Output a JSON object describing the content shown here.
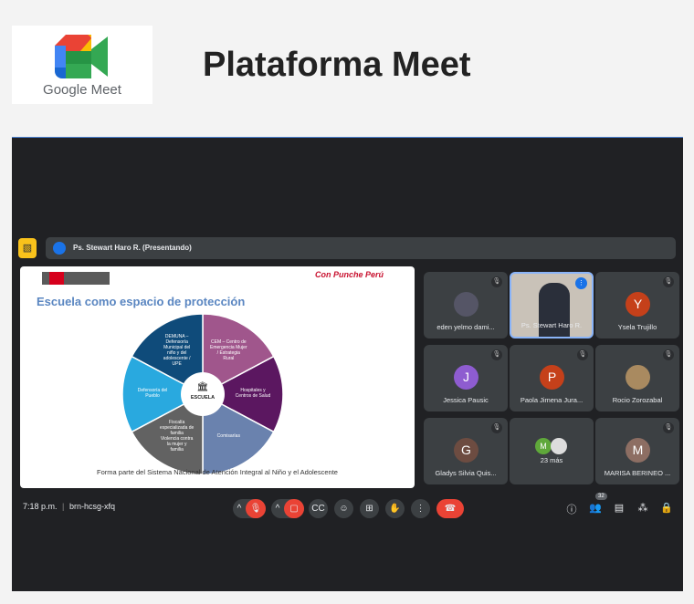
{
  "header": {
    "logo_text": "Google Meet",
    "title": "Plataforma Meet"
  },
  "meeting": {
    "presenter_bar": "Ps. Stewart Haro R. (Presentando)",
    "slide": {
      "title": "Escuela como espacio de protección",
      "center": "ESCUELA",
      "footer": "Forma parte del Sistema Nacional de Atención Integral al Niño y el Adolescente",
      "brand": "Con Punche Perú",
      "segments": [
        {
          "label": "CEM – Centro de Emergencia Mujer / Estrategia Rural",
          "color": "#a0568c"
        },
        {
          "label": "Hospitales y Centros de Salud",
          "color": "#5b1760"
        },
        {
          "label": "Comisarías",
          "color": "#6a82ae"
        },
        {
          "label": "Fiscalía especializada de familia Violencia contra la mujer y familia",
          "color": "#626262"
        },
        {
          "label": "Defensoría del Pueblo",
          "color": "#29a9df"
        },
        {
          "label": "DEMUNA – Defensoría Municipal del niño y del adolescente / UPE",
          "color": "#0f4b7a"
        }
      ]
    },
    "participants": [
      {
        "name": "eden yelmo dami...",
        "initial": "",
        "color": "#556"
      },
      {
        "name": "Ps. Stewart Haro R.",
        "initial": "",
        "color": "",
        "speaking": true
      },
      {
        "name": "Ysela Trujillo",
        "initial": "Y",
        "color": "#c5401a"
      },
      {
        "name": "Jessica Pausic",
        "initial": "J",
        "color": "#8e5cd0"
      },
      {
        "name": "Paola Jimena Jura...",
        "initial": "P",
        "color": "#c5401a"
      },
      {
        "name": "Rocio Zorozabal",
        "initial": "",
        "color": "#a98a60"
      },
      {
        "name": "Gladys Silvia Quis...",
        "initial": "G",
        "color": "#6d4c41"
      },
      {
        "name": "23 más",
        "initial": "M",
        "color": "#5fa83a"
      },
      {
        "name": "MARISA BERINEO ...",
        "initial": "M",
        "color": "#8d6e63"
      }
    ],
    "time": "7:18 p.m.",
    "code": "brn-hcsg-xfq",
    "participant_count": "32"
  }
}
